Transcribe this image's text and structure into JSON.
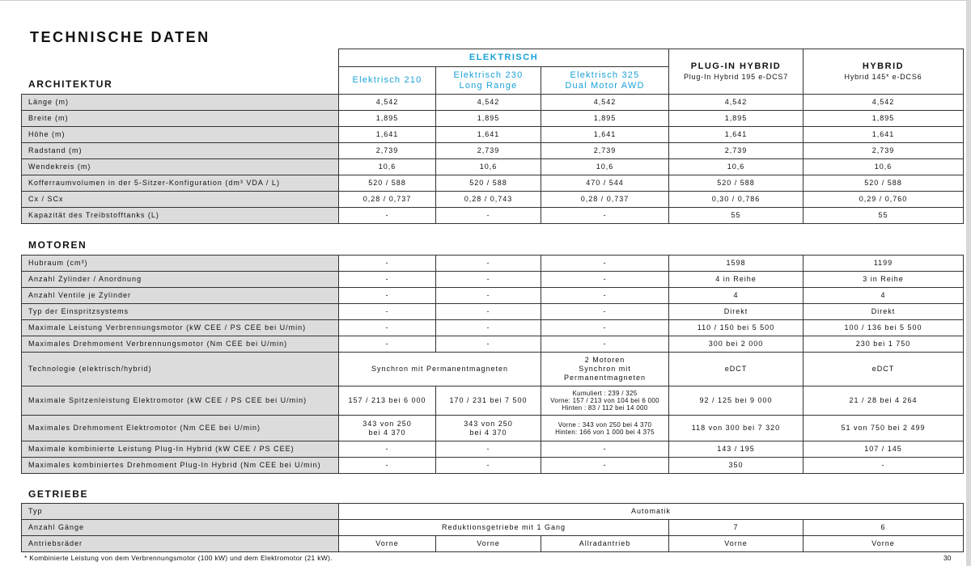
{
  "title": "TECHNISCHE DATEN",
  "header": {
    "group_electric": "ELEKTRISCH",
    "models": [
      "Elektrisch 210",
      "Elektrisch 230\nLong Range",
      "Elektrisch 325\nDual Motor AWD"
    ],
    "plugin": {
      "title": "PLUG-IN HYBRID",
      "model": "Plug-In Hybrid 195 e-DCS7"
    },
    "hybrid": {
      "title": "HYBRID",
      "model": "Hybrid 145* e-DCS6"
    }
  },
  "sections": [
    {
      "title": "ARCHITEKTUR",
      "rows": [
        {
          "label": "Länge (m)",
          "cells": [
            {
              "t": "4,542"
            },
            {
              "t": "4,542"
            },
            {
              "t": "4,542"
            },
            {
              "t": "4,542"
            },
            {
              "t": "4,542"
            }
          ]
        },
        {
          "label": "Breite (m)",
          "cells": [
            {
              "t": "1,895"
            },
            {
              "t": "1,895"
            },
            {
              "t": "1,895"
            },
            {
              "t": "1,895"
            },
            {
              "t": "1,895"
            }
          ]
        },
        {
          "label": "Höhe (m)",
          "cells": [
            {
              "t": "1,641"
            },
            {
              "t": "1,641"
            },
            {
              "t": "1,641"
            },
            {
              "t": "1,641"
            },
            {
              "t": "1,641"
            }
          ]
        },
        {
          "label": "Radstand (m)",
          "cells": [
            {
              "t": "2,739"
            },
            {
              "t": "2,739"
            },
            {
              "t": "2,739"
            },
            {
              "t": "2,739"
            },
            {
              "t": "2,739"
            }
          ]
        },
        {
          "label": "Wendekreis (m)",
          "cells": [
            {
              "t": "10,6"
            },
            {
              "t": "10,6"
            },
            {
              "t": "10,6"
            },
            {
              "t": "10,6"
            },
            {
              "t": "10,6"
            }
          ]
        },
        {
          "label": "Kofferraumvolumen in der 5-Sitzer-Konfiguration (dm³ VDA / L)",
          "cells": [
            {
              "t": "520 / 588"
            },
            {
              "t": "520 / 588"
            },
            {
              "t": "470 / 544"
            },
            {
              "t": "520 / 588"
            },
            {
              "t": "520 / 588"
            }
          ]
        },
        {
          "label": "Cx / SCx",
          "cells": [
            {
              "t": "0,28 / 0,737"
            },
            {
              "t": "0,28 / 0,743"
            },
            {
              "t": "0,28 / 0,737"
            },
            {
              "t": "0,30 / 0,786"
            },
            {
              "t": "0,29 / 0,760"
            }
          ]
        },
        {
          "label": "Kapazität des Treibstofftanks (L)",
          "cells": [
            {
              "t": "-"
            },
            {
              "t": "-"
            },
            {
              "t": "-"
            },
            {
              "t": "55"
            },
            {
              "t": "55"
            }
          ]
        }
      ]
    },
    {
      "title": "MOTOREN",
      "rows": [
        {
          "label": "Hubraum (cm³)",
          "cells": [
            {
              "t": "-"
            },
            {
              "t": "-"
            },
            {
              "t": "-"
            },
            {
              "t": "1598"
            },
            {
              "t": "1199"
            }
          ]
        },
        {
          "label": "Anzahl Zylinder / Anordnung",
          "cells": [
            {
              "t": "-"
            },
            {
              "t": "-"
            },
            {
              "t": "-"
            },
            {
              "t": "4 in Reihe"
            },
            {
              "t": "3 in Reihe"
            }
          ]
        },
        {
          "label": "Anzahl Ventile je Zylinder",
          "cells": [
            {
              "t": "-"
            },
            {
              "t": "-"
            },
            {
              "t": "-"
            },
            {
              "t": "4"
            },
            {
              "t": "4"
            }
          ]
        },
        {
          "label": "Typ der Einspritzsystems",
          "cells": [
            {
              "t": "-"
            },
            {
              "t": "-"
            },
            {
              "t": "-"
            },
            {
              "t": "Direkt"
            },
            {
              "t": "Direkt"
            }
          ]
        },
        {
          "label": "Maximale Leistung Verbrennungsmotor (kW CEE / PS CEE bei U/min)",
          "cells": [
            {
              "t": "-"
            },
            {
              "t": "-"
            },
            {
              "t": "-"
            },
            {
              "t": "110 / 150 bei 5 500"
            },
            {
              "t": "100 / 136 bei 5 500"
            }
          ]
        },
        {
          "label": "Maximales Drehmoment Verbrennungsmotor (Nm CEE bei U/min)",
          "cells": [
            {
              "t": "-"
            },
            {
              "t": "-"
            },
            {
              "t": "-"
            },
            {
              "t": "300 bei 2 000"
            },
            {
              "t": "230 bei 1 750"
            }
          ]
        },
        {
          "label": "Technologie (elektrisch/hybrid)",
          "tall": "42",
          "cells": [
            {
              "t": "Synchron mit Permanentmagneten",
              "span": 2
            },
            {
              "t": "2 Motoren\nSynchron mit\nPermanentmagneten"
            },
            {
              "t": "eDCT"
            },
            {
              "t": "eDCT"
            }
          ]
        },
        {
          "label": "Maximale Spitzenleistung Elektromotor (kW CEE / PS CEE bei U/min)",
          "tall": "36",
          "cells": [
            {
              "t": "157 / 213 bei 6 000"
            },
            {
              "t": "170 / 231 bei 7 500"
            },
            {
              "t": "Kumuliert : 239 / 325\nVorne: 157 / 213 von 104 bei 6 000\nHinten : 83 / 112 bei 14 000",
              "small": true
            },
            {
              "t": "92 / 125 bei 9 000"
            },
            {
              "t": "21 / 28 bei 4 264"
            }
          ]
        },
        {
          "label": "Maximales Drehmoment Elektromotor (Nm CEE bei U/min)",
          "tall": "32",
          "cells": [
            {
              "t": "343 von 250\nbei 4 370"
            },
            {
              "t": "343 von 250\nbei 4 370"
            },
            {
              "t": "Vorne : 343 von 250 bei 4 370\nHinten: 166 von 1 000 bei 4 375",
              "small": true
            },
            {
              "t": "118 von 300 bei 7 320"
            },
            {
              "t": "51 von 750 bei 2 499"
            }
          ]
        },
        {
          "label": "Maximale kombinierte Leistung Plug-In Hybrid (kW CEE / PS CEE)",
          "cells": [
            {
              "t": "-"
            },
            {
              "t": "-"
            },
            {
              "t": "-"
            },
            {
              "t": "143 / 195"
            },
            {
              "t": "107 / 145"
            }
          ]
        },
        {
          "label": "Maximales kombiniertes Drehmoment  Plug-In Hybrid (Nm CEE bei U/min)",
          "cells": [
            {
              "t": "-"
            },
            {
              "t": "-"
            },
            {
              "t": "-"
            },
            {
              "t": "350"
            },
            {
              "t": "-"
            }
          ]
        }
      ]
    },
    {
      "title": "GETRIEBE",
      "rows": [
        {
          "label": "Typ",
          "cells": [
            {
              "t": "Automatik",
              "span": 5
            }
          ]
        },
        {
          "label": "Anzahl Gänge",
          "cells": [
            {
              "t": "Reduktionsgetriebe mit 1 Gang",
              "span": 3
            },
            {
              "t": "7"
            },
            {
              "t": "6"
            }
          ]
        },
        {
          "label": "Antriebsräder",
          "cells": [
            {
              "t": "Vorne"
            },
            {
              "t": "Vorne"
            },
            {
              "t": "Allradantrieb"
            },
            {
              "t": "Vorne"
            },
            {
              "t": "Vorne"
            }
          ]
        }
      ]
    }
  ],
  "footnote": "* Kombinierte Leistung von dem Verbrennungsmotor (100 kW) und dem Elektromotor (21 kW).",
  "page_number": "30"
}
